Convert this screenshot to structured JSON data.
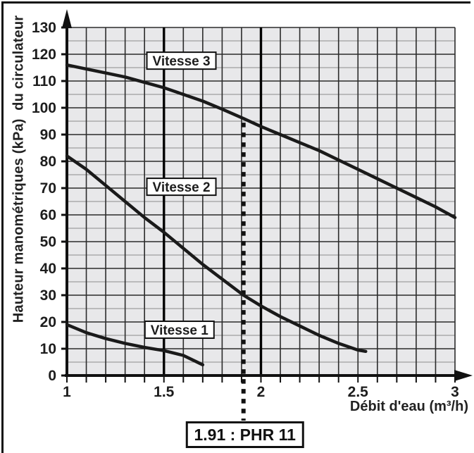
{
  "chart_data": {
    "type": "line",
    "title": "",
    "xlabel": "Débit d'eau (m³/h)",
    "ylabel": "Hauteur manométriques (kPa)  du circulateur",
    "xlim": [
      1,
      3
    ],
    "ylim": [
      0,
      130
    ],
    "x_tick_values": [
      1,
      1.5,
      2,
      2.5,
      3
    ],
    "x_tick_labels": [
      "1",
      "1.5",
      "2",
      "2.5",
      "3"
    ],
    "y_tick_values": [
      0,
      10,
      20,
      30,
      40,
      50,
      60,
      70,
      80,
      90,
      100,
      110,
      120,
      130
    ],
    "y_tick_labels": [
      "0",
      "10",
      "20",
      "30",
      "40",
      "50",
      "60",
      "70",
      "80",
      "90",
      "100",
      "110",
      "120",
      "130"
    ],
    "grid": {
      "on": true,
      "x_minor_step": 0.1,
      "y_minor_step": 5,
      "emphasized_x_lines": [
        1.5,
        2
      ]
    },
    "series": [
      {
        "name": "Vitesse 3",
        "label_box": {
          "x": 1.59,
          "y": 117.6
        },
        "points": [
          [
            1.0,
            116
          ],
          [
            1.1,
            114.5
          ],
          [
            1.2,
            113
          ],
          [
            1.3,
            111.5
          ],
          [
            1.4,
            109.5
          ],
          [
            1.5,
            107.5
          ],
          [
            1.6,
            105
          ],
          [
            1.7,
            102.5
          ],
          [
            1.8,
            99.5
          ],
          [
            1.91,
            96
          ],
          [
            2.0,
            93
          ],
          [
            2.1,
            90
          ],
          [
            2.2,
            87
          ],
          [
            2.3,
            84
          ],
          [
            2.4,
            80.5
          ],
          [
            2.5,
            77
          ],
          [
            2.6,
            73.5
          ],
          [
            2.7,
            70
          ],
          [
            2.8,
            66.5
          ],
          [
            2.9,
            63
          ],
          [
            3.0,
            59
          ]
        ]
      },
      {
        "name": "Vitesse 2",
        "label_box": {
          "x": 1.59,
          "y": 70.5
        },
        "points": [
          [
            1.0,
            82
          ],
          [
            1.1,
            77
          ],
          [
            1.2,
            71
          ],
          [
            1.3,
            65
          ],
          [
            1.4,
            59
          ],
          [
            1.5,
            53.5
          ],
          [
            1.6,
            47.5
          ],
          [
            1.7,
            41.5
          ],
          [
            1.8,
            36
          ],
          [
            1.91,
            30
          ],
          [
            2.0,
            26
          ],
          [
            2.1,
            22
          ],
          [
            2.2,
            18.5
          ],
          [
            2.3,
            15
          ],
          [
            2.4,
            12
          ],
          [
            2.5,
            9.5
          ],
          [
            2.54,
            9
          ]
        ]
      },
      {
        "name": "Vitesse 1",
        "label_box": {
          "x": 1.58,
          "y": 17.1
        },
        "points": [
          [
            1.0,
            19
          ],
          [
            1.1,
            16
          ],
          [
            1.2,
            13.8
          ],
          [
            1.3,
            12
          ],
          [
            1.4,
            10.5
          ],
          [
            1.5,
            9.3
          ],
          [
            1.6,
            7.5
          ],
          [
            1.7,
            4
          ]
        ]
      }
    ],
    "annotation": {
      "label": "1.91 : PHR 11",
      "x": 1.91,
      "line_top_kpa": 95.5
    },
    "colors": {
      "plot_background": "#e8e8ea",
      "grid_minor": "#8c8c8c",
      "grid_major": "#2b2b2b",
      "axis": "#111111",
      "curve": "#1a1a1a",
      "label_box_bg": "#ffffff",
      "label_box_border": "#111111"
    }
  }
}
